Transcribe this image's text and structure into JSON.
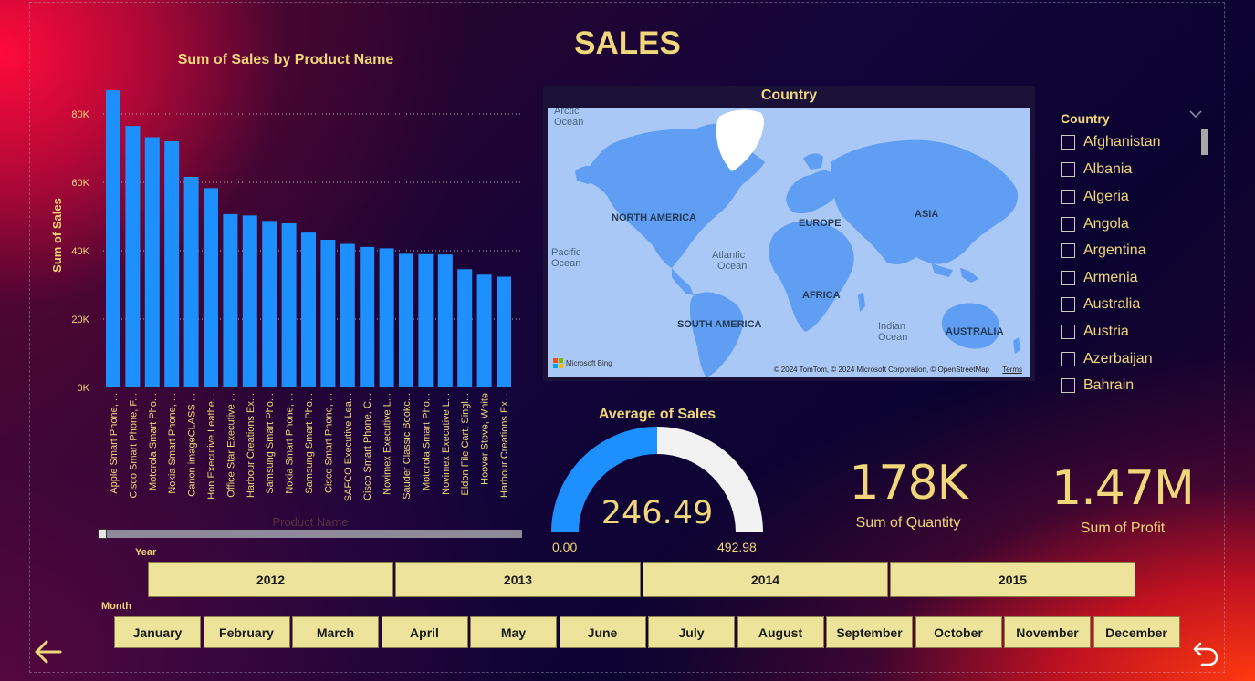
{
  "page": {
    "title": "SALES"
  },
  "bar_chart": {
    "title": "Sum of Sales by Product Name",
    "ylabel": "Sum of Sales",
    "xlabel": "Product Name",
    "yticks": [
      "0K",
      "20K",
      "40K",
      "60K",
      "80K"
    ]
  },
  "chart_data": {
    "type": "bar",
    "title": "Sum of Sales by Product Name",
    "xlabel": "Product Name",
    "ylabel": "Sum of Sales",
    "ylim": [
      0,
      90000
    ],
    "categories": [
      "Apple Smart Phone, ...",
      "Cisco Smart Phone, F...",
      "Motorola Smart Pho...",
      "Nokia Smart Phone, ...",
      "Canon imageCLASS ...",
      "Hon Executive Leathe...",
      "Office Star Executive ...",
      "Harbour Creations Ex...",
      "Samsung Smart Pho...",
      "Nokia Smart Phone, ...",
      "Samsung Smart Pho...",
      "Cisco Smart Phone, ...",
      "SAFCO Executive Lea...",
      "Cisco Smart Phone, C...",
      "Novimex Executive L...",
      "Sauder Classic Bookc...",
      "Motorola Smart Pho...",
      "Novimex Executive L...",
      "Eldon File Cart, Singl...",
      "Hoover Stove, White",
      "Harbour Creations Ex..."
    ],
    "values": [
      86900,
      76500,
      73200,
      72000,
      61600,
      58300,
      50700,
      50300,
      48700,
      48000,
      45300,
      43200,
      42000,
      41100,
      40700,
      39100,
      39000,
      38900,
      34600,
      33000,
      32400
    ],
    "grid": true,
    "bar_color": "#1e8fff"
  },
  "map": {
    "title": "Country",
    "labels": {
      "arctic": "Arctic",
      "arctic2": "Ocean",
      "north_america": "NORTH AMERICA",
      "europe": "EUROPE",
      "asia": "ASIA",
      "pacific": "Pacific",
      "pacific2": "Ocean",
      "atlantic": "Atlantic",
      "atlantic2": "Ocean",
      "africa": "AFRICA",
      "south_america": "SOUTH AMERICA",
      "indian": "Indian",
      "indian2": "Ocean",
      "australia": "AUSTRALIA"
    },
    "attribution": "© 2024 TomTom, © 2024 Microsoft Corporation, © OpenStreetMap",
    "terms": "Terms",
    "logo": "Microsoft Bing"
  },
  "country_slicer": {
    "header": "Country",
    "items": [
      "Afghanistan",
      "Albania",
      "Algeria",
      "Angola",
      "Argentina",
      "Armenia",
      "Australia",
      "Austria",
      "Azerbaijan",
      "Bahrain"
    ]
  },
  "gauge": {
    "title": "Average of Sales",
    "value": "246.49",
    "min": "0.00",
    "max": "492.98",
    "fill_fraction": 0.5,
    "fill_color": "#1e8fff",
    "track_color": "#f2f2f2"
  },
  "kpi": {
    "quantity_value": "178K",
    "quantity_label": "Sum of Quantity",
    "profit_value": "1.47M",
    "profit_label": "Sum of Profit"
  },
  "year_slicer": {
    "caption": "Year",
    "items": [
      "2012",
      "2013",
      "2014",
      "2015"
    ]
  },
  "month_slicer": {
    "caption": "Month",
    "items": [
      "January",
      "February",
      "March",
      "April",
      "May",
      "June",
      "July",
      "August",
      "September",
      "October",
      "November",
      "December"
    ]
  },
  "nav": {
    "back_icon": "arrow-left-icon",
    "undo_icon": "undo-icon"
  },
  "colors": {
    "accent_gold": "#f0d77a",
    "tile_fill": "#ede39b"
  }
}
